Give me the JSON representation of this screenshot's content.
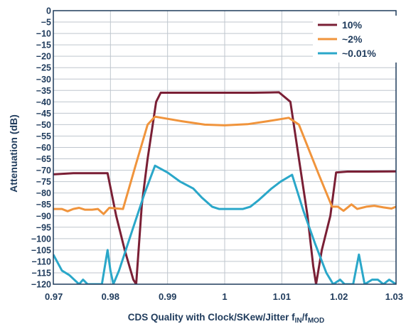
{
  "chart_data": {
    "type": "line",
    "xlabel": "CDS Quality with Clock/SKew/Jitter f",
    "xlabel_sub1": "IN",
    "xlabel_sep": "/f",
    "xlabel_sub2": "MOD",
    "ylabel": "Attenuation (dB)",
    "xlim": [
      0.97,
      1.03
    ],
    "ylim": [
      -120,
      0
    ],
    "x_ticks": [
      "0.97",
      "0.98",
      "0.99",
      "1",
      "1.01",
      "1.02",
      "1.03"
    ],
    "x_tick_values": [
      0.97,
      0.98,
      0.99,
      1.0,
      1.01,
      1.02,
      1.03
    ],
    "y_ticks": [
      "0",
      "−5",
      "−10",
      "−15",
      "−20",
      "−25",
      "−30",
      "−35",
      "−40",
      "−45",
      "−50",
      "−55",
      "−60",
      "−65",
      "−70",
      "−75",
      "−80",
      "−85",
      "−90",
      "−95",
      "−100",
      "−105",
      "−110",
      "−115",
      "−120"
    ],
    "y_tick_values": [
      0,
      -5,
      -10,
      -15,
      -20,
      -25,
      -30,
      -35,
      -40,
      -45,
      -50,
      -55,
      -60,
      -65,
      -70,
      -75,
      -80,
      -85,
      -90,
      -95,
      -100,
      -105,
      -110,
      -115,
      -120
    ],
    "grid": true,
    "legend_position": "top-right",
    "series": [
      {
        "name": "10%",
        "color": "#7a1f35",
        "points": [
          [
            0.97,
            -71.8
          ],
          [
            0.9735,
            -71.3
          ],
          [
            0.9775,
            -71.3
          ],
          [
            0.9795,
            -71.3
          ],
          [
            0.981,
            -90
          ],
          [
            0.9825,
            -105
          ],
          [
            0.984,
            -118
          ],
          [
            0.9845,
            -120
          ],
          [
            0.9855,
            -85
          ],
          [
            0.9865,
            -65
          ],
          [
            0.988,
            -40
          ],
          [
            0.9888,
            -36
          ],
          [
            0.995,
            -36
          ],
          [
            1.0,
            -36
          ],
          [
            1.005,
            -36
          ],
          [
            1.0095,
            -35.8
          ],
          [
            1.0115,
            -40
          ],
          [
            1.013,
            -65
          ],
          [
            1.0145,
            -90
          ],
          [
            1.0155,
            -112
          ],
          [
            1.016,
            -120
          ],
          [
            1.017,
            -105
          ],
          [
            1.0185,
            -90
          ],
          [
            1.0195,
            -71
          ],
          [
            1.0215,
            -70.6
          ],
          [
            1.025,
            -70.6
          ],
          [
            1.03,
            -70.5
          ]
        ]
      },
      {
        "name": "~2%",
        "color": "#f0943c",
        "points": [
          [
            0.97,
            -87
          ],
          [
            0.9715,
            -87
          ],
          [
            0.9725,
            -88
          ],
          [
            0.9735,
            -87
          ],
          [
            0.9745,
            -86.5
          ],
          [
            0.9755,
            -87.3
          ],
          [
            0.9768,
            -87.3
          ],
          [
            0.9778,
            -87
          ],
          [
            0.9788,
            -89.2
          ],
          [
            0.9798,
            -86.5
          ],
          [
            0.9812,
            -86.8
          ],
          [
            0.9822,
            -87
          ],
          [
            0.9845,
            -67
          ],
          [
            0.9865,
            -50
          ],
          [
            0.9878,
            -46.5
          ],
          [
            0.989,
            -47
          ],
          [
            0.9925,
            -48.5
          ],
          [
            0.9965,
            -50
          ],
          [
            1.0,
            -50.3
          ],
          [
            1.004,
            -49.8
          ],
          [
            1.0075,
            -48.5
          ],
          [
            1.0112,
            -47
          ],
          [
            1.013,
            -50
          ],
          [
            1.0165,
            -72
          ],
          [
            1.0188,
            -86
          ],
          [
            1.0198,
            -86
          ],
          [
            1.0208,
            -87.8
          ],
          [
            1.0222,
            -85
          ],
          [
            1.0232,
            -87
          ],
          [
            1.0248,
            -86
          ],
          [
            1.0262,
            -85.6
          ],
          [
            1.0278,
            -86.3
          ],
          [
            1.0292,
            -86.8
          ],
          [
            1.03,
            -86
          ]
        ]
      },
      {
        "name": "~0.01%",
        "color": "#2aa7c9",
        "points": [
          [
            0.97,
            -107
          ],
          [
            0.9715,
            -114
          ],
          [
            0.9728,
            -116
          ],
          [
            0.9745,
            -120
          ],
          [
            0.9752,
            -118
          ],
          [
            0.976,
            -120
          ],
          [
            0.9785,
            -120
          ],
          [
            0.9795,
            -105
          ],
          [
            0.98,
            -114
          ],
          [
            0.9805,
            -120
          ],
          [
            0.9815,
            -114
          ],
          [
            0.984,
            -95
          ],
          [
            0.986,
            -80
          ],
          [
            0.9878,
            -68
          ],
          [
            0.99,
            -71
          ],
          [
            0.9922,
            -75
          ],
          [
            0.9945,
            -78
          ],
          [
            0.996,
            -82
          ],
          [
            0.9978,
            -86
          ],
          [
            0.999,
            -87
          ],
          [
            1.0,
            -87
          ],
          [
            1.0015,
            -87
          ],
          [
            1.0032,
            -87
          ],
          [
            1.0045,
            -86
          ],
          [
            1.006,
            -83
          ],
          [
            1.0082,
            -78
          ],
          [
            1.0098,
            -75
          ],
          [
            1.0118,
            -72
          ],
          [
            1.0138,
            -88
          ],
          [
            1.0158,
            -102
          ],
          [
            1.0178,
            -115
          ],
          [
            1.019,
            -120
          ],
          [
            1.0202,
            -118
          ],
          [
            1.021,
            -120
          ],
          [
            1.0225,
            -120
          ],
          [
            1.0235,
            -107
          ],
          [
            1.0245,
            -120
          ],
          [
            1.0258,
            -118
          ],
          [
            1.0268,
            -118
          ],
          [
            1.0278,
            -120
          ],
          [
            1.0288,
            -118
          ],
          [
            1.03,
            -120
          ]
        ]
      }
    ]
  }
}
